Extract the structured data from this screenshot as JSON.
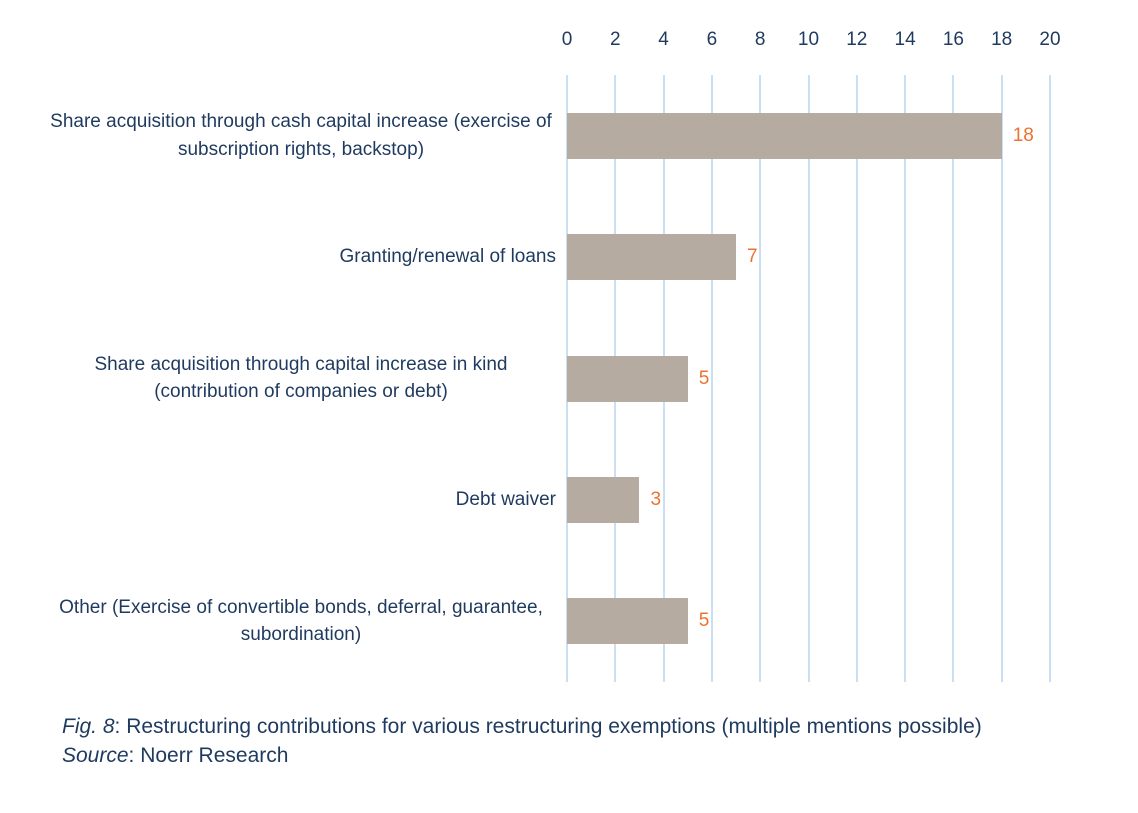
{
  "chart_data": {
    "type": "bar",
    "orientation": "horizontal",
    "categories": [
      "Share acquisition through cash capital increase (exercise of subscription rights, backstop)",
      "Granting/renewal of loans",
      "Share acquisition through capital increase in kind (contribution of companies or debt)",
      "Debt waiver",
      "Other (Exercise of convertible bonds, deferral, guarantee, subordination)"
    ],
    "values": [
      18,
      7,
      5,
      3,
      5
    ],
    "value_labels": [
      "18",
      "7",
      "5",
      "3",
      "5"
    ],
    "xlim": [
      0,
      20
    ],
    "x_ticks": [
      0,
      2,
      4,
      6,
      8,
      10,
      12,
      14,
      16,
      18,
      20
    ],
    "grid": true,
    "legend": "none",
    "axis_position": "top",
    "title": "",
    "xlabel": "",
    "ylabel": ""
  },
  "colors": {
    "bar_fill": "#b5aba0",
    "value_label": "#ed722e",
    "axis_text": "#1f3a5f",
    "gridline": "#cbdff2",
    "background": "#ffffff"
  },
  "caption": {
    "fig_label": "Fig. 8",
    "fig_text": ": Restructuring contributions for various restructuring exemptions (multiple mentions possible)",
    "source_label": "Source",
    "source_text": ": Noerr Research"
  }
}
